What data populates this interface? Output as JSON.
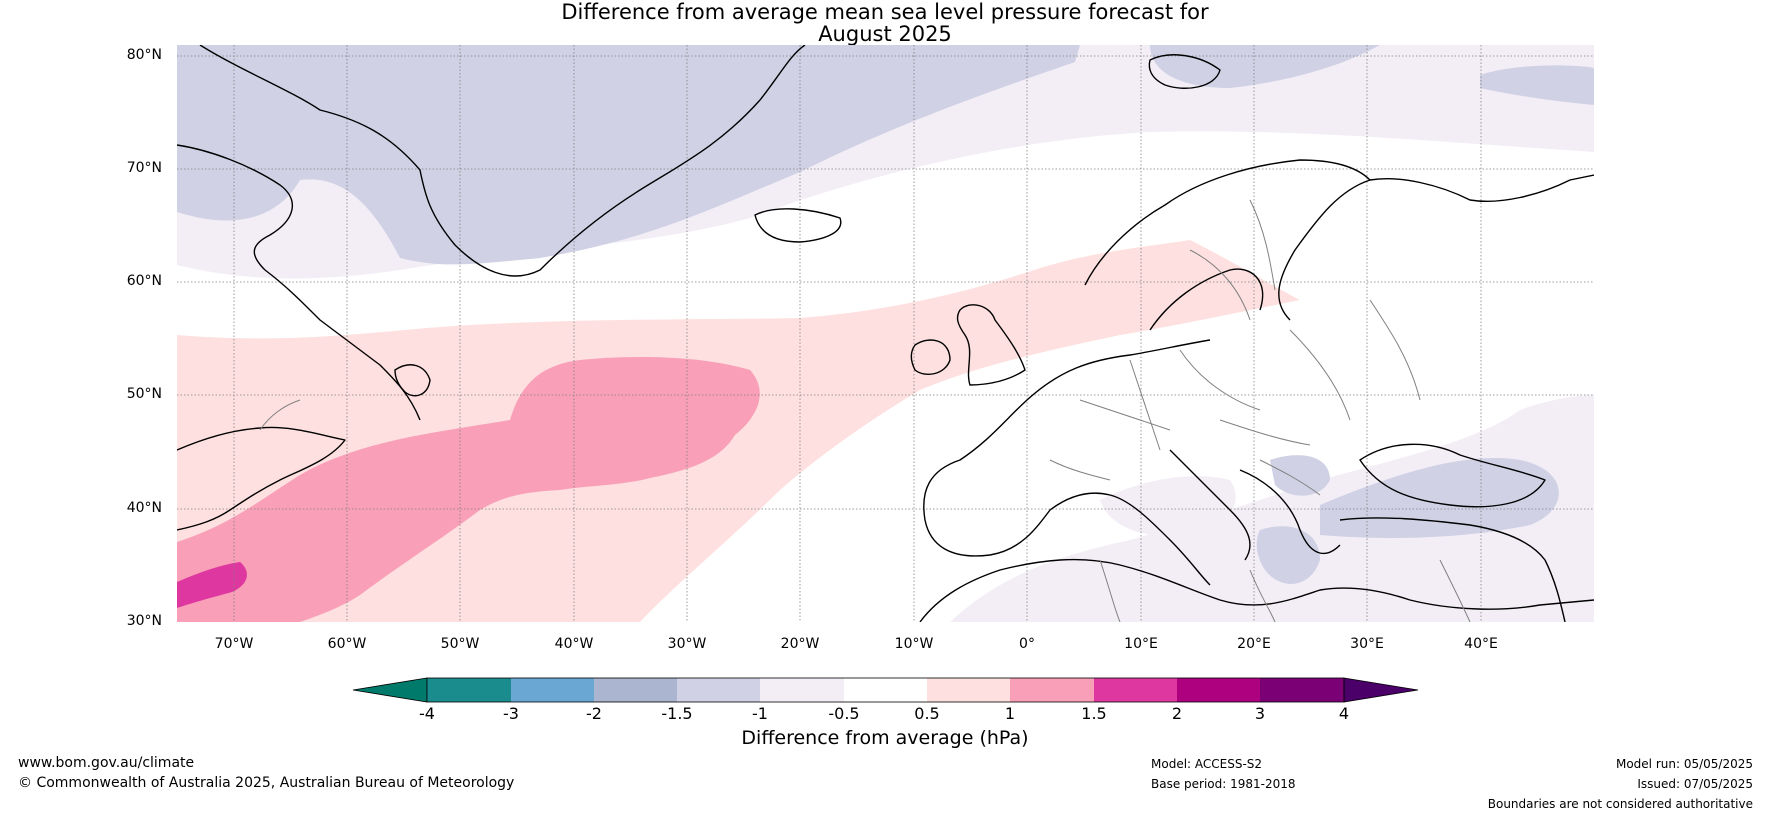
{
  "title": {
    "line1": "Difference from average mean sea level pressure forecast for",
    "line2": "August 2025"
  },
  "map": {
    "region": "North Atlantic and Europe",
    "lon_range": [
      -75,
      50
    ],
    "lat_range": [
      30,
      81
    ],
    "lat_ticks": [
      "80°N",
      "70°N",
      "60°N",
      "50°N",
      "40°N",
      "30°N"
    ],
    "lon_ticks": [
      "70°W",
      "60°W",
      "50°W",
      "40°W",
      "30°W",
      "20°W",
      "10°W",
      "0°",
      "10°E",
      "20°E",
      "30°E",
      "40°E"
    ],
    "coastline_color": "#000000",
    "border_color": "#808080",
    "gridline_color": "#808080"
  },
  "colorbar": {
    "title": "Difference from average (hPa)",
    "tick_labels": [
      "-4",
      "-3",
      "-2",
      "-1.5",
      "-1",
      "-0.5",
      "0.5",
      "1",
      "1.5",
      "2",
      "3",
      "4"
    ],
    "colors": [
      "#1a8c8e",
      "#6aa7d2",
      "#abb5cf",
      "#d0d1e5",
      "#f3eef6",
      "#ffffff",
      "#fde0df",
      "#f99fb8",
      "#de38a0",
      "#ad0180",
      "#7b0076"
    ],
    "under_color": "#007a6b",
    "over_color": "#4a0068"
  },
  "footer": {
    "website": "www.bom.gov.au/climate",
    "copyright": "© Commonwealth of Australia 2025, Australian Bureau of Meteorology",
    "model": "Model: ACCESS-S2",
    "base_period": "Base period: 1981-2018",
    "model_run": "Model run: 05/05/2025",
    "issued": "Issued: 07/05/2025",
    "disclaimer": "Boundaries are not considered authoritative"
  }
}
